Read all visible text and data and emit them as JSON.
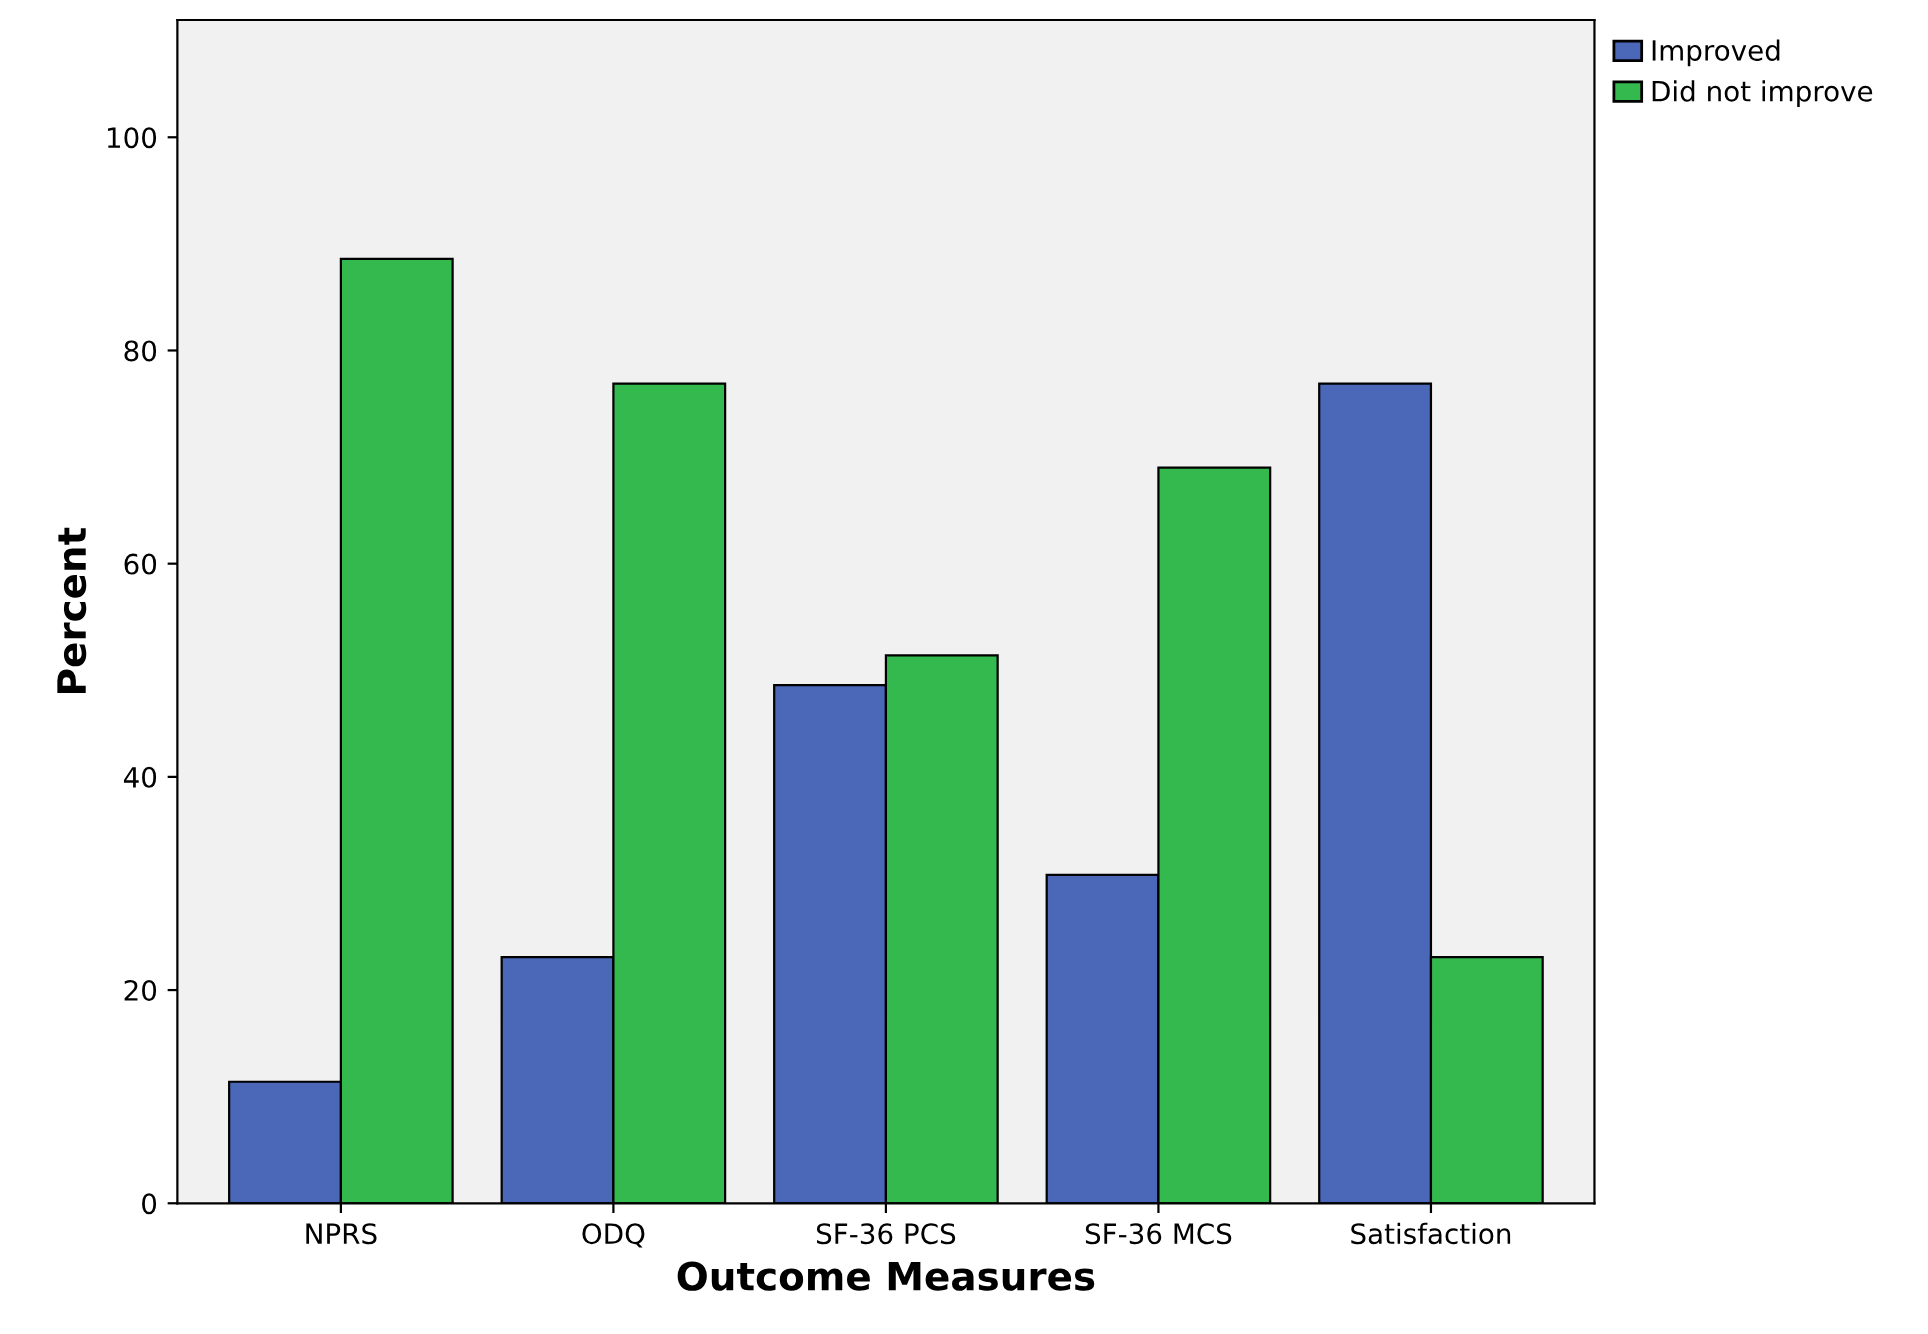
{
  "chart_data": {
    "type": "bar",
    "xlabel": "Outcome Measures",
    "ylabel": "Percent",
    "categories": [
      "NPRS",
      "ODQ",
      "SF-36 PCS",
      "SF-36 MCS",
      "Satisfaction"
    ],
    "series": [
      {
        "name": "Improved",
        "color": "#4a67b8",
        "values": [
          11.4,
          23.1,
          48.6,
          30.8,
          76.9
        ]
      },
      {
        "name": "Did not improve",
        "color": "#34b94f",
        "values": [
          88.6,
          76.9,
          51.4,
          69.0,
          23.1
        ]
      }
    ],
    "ylim": [
      0,
      111
    ],
    "yticks": [
      0,
      20,
      40,
      60,
      80,
      100
    ],
    "grid": false,
    "legend": "top right"
  }
}
